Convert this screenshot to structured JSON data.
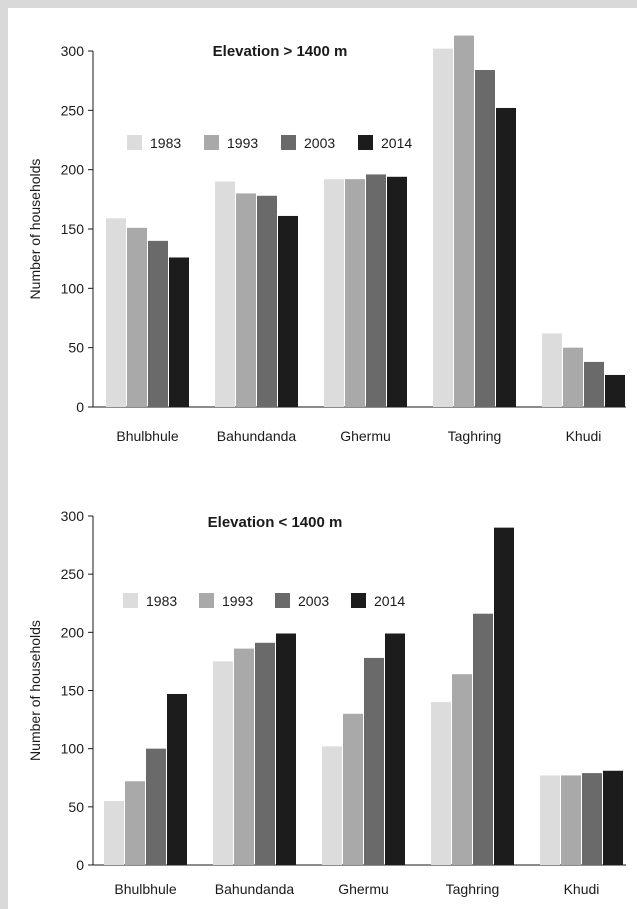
{
  "chart_data": [
    {
      "type": "bar",
      "title": "Elevation > 1400  m",
      "ylabel": "Number of households",
      "ylim": [
        0,
        300
      ],
      "yticks": [
        0,
        50,
        100,
        150,
        200,
        250,
        300
      ],
      "legend_position": "top-left",
      "categories": [
        "Bhulbhule",
        "Bahundanda",
        "Ghermu",
        "Taghring",
        "Khudi"
      ],
      "series": [
        {
          "name": "1983",
          "color": "#dcdcdc",
          "values": [
            159,
            190,
            192,
            302,
            62
          ]
        },
        {
          "name": "1993",
          "color": "#a9a9a9",
          "values": [
            151,
            180,
            192,
            313,
            50
          ]
        },
        {
          "name": "2003",
          "color": "#6a6a6a",
          "values": [
            140,
            178,
            196,
            284,
            38
          ]
        },
        {
          "name": "2014",
          "color": "#1c1c1c",
          "values": [
            126,
            161,
            194,
            252,
            27
          ]
        }
      ]
    },
    {
      "type": "bar",
      "title": "Elevation < 1400  m",
      "ylabel": "Number of households",
      "ylim": [
        0,
        300
      ],
      "yticks": [
        0,
        50,
        100,
        150,
        200,
        250,
        300
      ],
      "legend_position": "top-left",
      "categories": [
        "Bhulbhule",
        "Bahundanda",
        "Ghermu",
        "Taghring",
        "Khudi"
      ],
      "series": [
        {
          "name": "1983",
          "color": "#dcdcdc",
          "values": [
            55,
            175,
            102,
            140,
            77
          ]
        },
        {
          "name": "1993",
          "color": "#a9a9a9",
          "values": [
            72,
            186,
            130,
            164,
            77
          ]
        },
        {
          "name": "2003",
          "color": "#6a6a6a",
          "values": [
            100,
            191,
            178,
            216,
            79
          ]
        },
        {
          "name": "2014",
          "color": "#1c1c1c",
          "values": [
            147,
            199,
            199,
            290,
            81
          ]
        }
      ]
    }
  ]
}
